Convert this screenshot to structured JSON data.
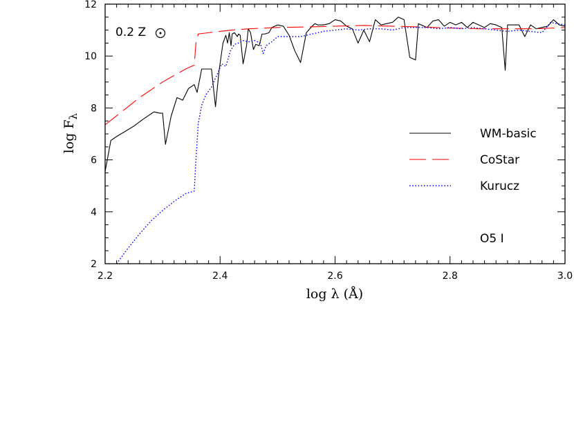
{
  "chart_data": {
    "type": "line",
    "xlabel": "log  λ (Å)",
    "ylabel": "log F",
    "ylabel_sub": "λ",
    "xlim": [
      2.2,
      3.0
    ],
    "ylim": [
      2,
      12
    ],
    "x_ticks": [
      2.2,
      2.4,
      2.6,
      2.8,
      3.0
    ],
    "x_tick_labels": [
      "2.2",
      "2.4",
      "2.6",
      "2.8",
      "3.0"
    ],
    "y_ticks": [
      2,
      4,
      6,
      8,
      10,
      12
    ],
    "y_tick_labels": [
      "2",
      "4",
      "6",
      "8",
      "10",
      "12"
    ],
    "grid": false,
    "legend_position": "right",
    "annotation_metallicity": "0.2 Z",
    "annotation_type": "O5 I",
    "series": [
      {
        "name": "WM-basic",
        "color": "#000000",
        "dash": "solid",
        "x": [
          2.2,
          2.21,
          2.22,
          2.235,
          2.25,
          2.265,
          2.285,
          2.295,
          2.3,
          2.305,
          2.315,
          2.325,
          2.335,
          2.345,
          2.355,
          2.36,
          2.368,
          2.372,
          2.385,
          2.392,
          2.398,
          2.405,
          2.41,
          2.413,
          2.416,
          2.419,
          2.421,
          2.425,
          2.43,
          2.432,
          2.435,
          2.44,
          2.446,
          2.449,
          2.453,
          2.458,
          2.462,
          2.468,
          2.473,
          2.478,
          2.485,
          2.49,
          2.495,
          2.5,
          2.51,
          2.52,
          2.53,
          2.54,
          2.55,
          2.56,
          2.565,
          2.57,
          2.58,
          2.59,
          2.6,
          2.61,
          2.62,
          2.63,
          2.64,
          2.65,
          2.66,
          2.67,
          2.68,
          2.69,
          2.7,
          2.71,
          2.72,
          2.73,
          2.74,
          2.745,
          2.75,
          2.76,
          2.77,
          2.78,
          2.79,
          2.8,
          2.81,
          2.82,
          2.83,
          2.84,
          2.85,
          2.86,
          2.87,
          2.88,
          2.89,
          2.896,
          2.9,
          2.91,
          2.92,
          2.93,
          2.94,
          2.95,
          2.96,
          2.97,
          2.98,
          2.99,
          3.0
        ],
        "y": [
          5.55,
          6.75,
          6.9,
          7.1,
          7.3,
          7.55,
          7.85,
          7.8,
          7.8,
          6.6,
          7.7,
          8.4,
          8.3,
          8.75,
          8.9,
          8.6,
          9.5,
          9.5,
          9.5,
          8.05,
          9.4,
          10.5,
          10.8,
          10.5,
          10.9,
          10.4,
          10.85,
          10.9,
          10.75,
          10.85,
          10.8,
          9.7,
          10.4,
          11.05,
          10.9,
          10.25,
          10.45,
          10.4,
          10.85,
          10.85,
          10.9,
          11.1,
          11.15,
          11.2,
          11.15,
          10.8,
          10.2,
          9.75,
          10.9,
          11.15,
          11.25,
          11.2,
          11.2,
          11.25,
          11.4,
          11.35,
          11.15,
          11.05,
          10.5,
          11.0,
          10.55,
          11.4,
          11.2,
          11.25,
          11.3,
          11.5,
          11.4,
          9.95,
          9.85,
          11.25,
          11.2,
          11.1,
          11.35,
          11.4,
          11.15,
          11.3,
          11.2,
          11.3,
          11.1,
          11.3,
          11.2,
          11.1,
          11.25,
          11.2,
          11.1,
          9.45,
          11.2,
          11.2,
          11.2,
          10.75,
          11.2,
          11.05,
          11.1,
          11.15,
          11.4,
          11.2,
          11.15
        ]
      },
      {
        "name": "CoStar",
        "color": "#ff0000",
        "dash": "long-dash",
        "x": [
          2.2,
          2.22,
          2.24,
          2.26,
          2.28,
          2.3,
          2.32,
          2.34,
          2.355,
          2.358,
          2.362,
          2.38,
          2.4,
          2.42,
          2.45,
          2.5,
          2.55,
          2.6,
          2.65,
          2.7,
          2.75,
          2.8,
          2.85,
          2.9,
          2.95,
          3.0
        ],
        "y": [
          7.35,
          7.7,
          8.05,
          8.4,
          8.7,
          9.0,
          9.25,
          9.5,
          9.65,
          10.5,
          10.85,
          10.9,
          10.95,
          11.0,
          11.05,
          11.1,
          11.12,
          11.15,
          11.18,
          11.15,
          11.12,
          11.08,
          11.05,
          11.05,
          11.05,
          11.1
        ]
      },
      {
        "name": "Kurucz",
        "color": "#0000ff",
        "dash": "dotted",
        "x": [
          2.22,
          2.24,
          2.26,
          2.28,
          2.3,
          2.32,
          2.34,
          2.355,
          2.358,
          2.362,
          2.368,
          2.375,
          2.385,
          2.395,
          2.403,
          2.41,
          2.418,
          2.425,
          2.432,
          2.44,
          2.45,
          2.46,
          2.47,
          2.475,
          2.48,
          2.49,
          2.5,
          2.52,
          2.54,
          2.56,
          2.58,
          2.6,
          2.62,
          2.64,
          2.66,
          2.68,
          2.7,
          2.72,
          2.74,
          2.76,
          2.78,
          2.8,
          2.82,
          2.84,
          2.86,
          2.88,
          2.9,
          2.92,
          2.94,
          2.96,
          2.975,
          2.985,
          3.0
        ],
        "y": [
          2.0,
          2.6,
          3.15,
          3.65,
          4.05,
          4.4,
          4.7,
          4.8,
          6.0,
          7.4,
          8.1,
          8.5,
          8.8,
          9.3,
          9.7,
          9.6,
          10.2,
          10.45,
          10.5,
          10.6,
          10.55,
          10.6,
          10.5,
          10.1,
          10.4,
          10.55,
          10.75,
          10.75,
          10.75,
          10.85,
          10.95,
          11.0,
          11.05,
          11.0,
          11.05,
          11.05,
          11.0,
          11.1,
          11.1,
          11.1,
          11.05,
          11.1,
          11.05,
          11.1,
          11.05,
          11.0,
          10.95,
          11.0,
          10.95,
          10.9,
          11.3,
          11.25,
          11.2
        ]
      }
    ]
  }
}
